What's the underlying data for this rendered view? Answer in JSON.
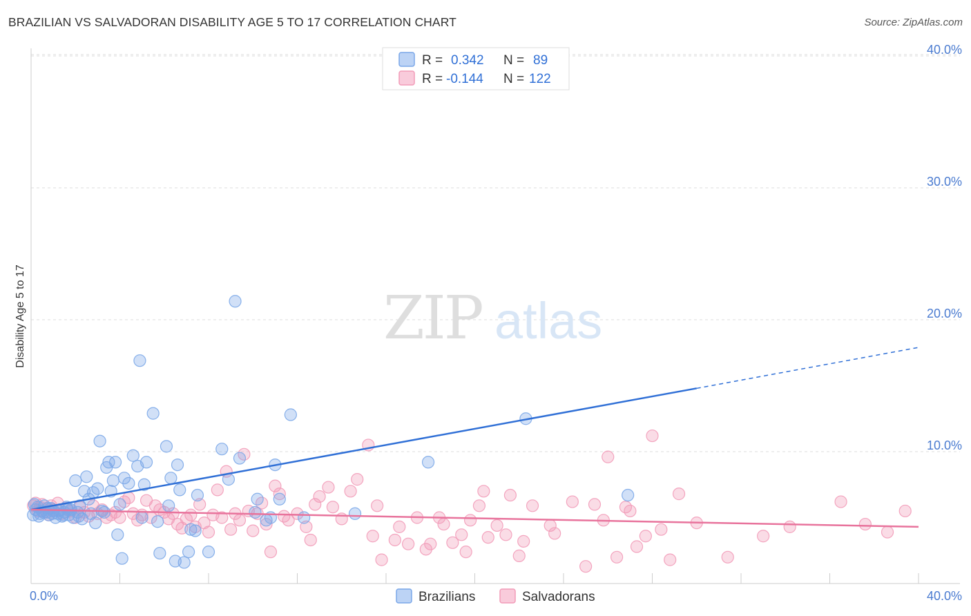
{
  "header": {
    "title": "BRAZILIAN VS SALVADORAN DISABILITY AGE 5 TO 17 CORRELATION CHART",
    "source": "Source: ZipAtlas.com"
  },
  "watermark": {
    "zip": "ZIP",
    "atlas": "atlas"
  },
  "legend": {
    "rows": [
      {
        "r_label": "R =",
        "r_value": "0.342",
        "n_label": "N =",
        "n_value": "89"
      },
      {
        "r_label": "R =",
        "r_value": "-0.144",
        "n_label": "N =",
        "n_value": "122"
      }
    ]
  },
  "bottom_legend": {
    "brazilians": "Brazilians",
    "salvadorans": "Salvadorans"
  },
  "chart_data": {
    "type": "scatter",
    "title": "BRAZILIAN VS SALVADORAN DISABILITY AGE 5 TO 17 CORRELATION CHART",
    "xlabel": "",
    "ylabel": "Disability Age 5 to 17",
    "xlim": [
      0,
      40
    ],
    "ylim": [
      0,
      41
    ],
    "x_tick_labels": [
      "0.0%",
      "40.0%"
    ],
    "y_ticks": [
      10,
      20,
      30,
      40
    ],
    "y_tick_labels": [
      "10.0%",
      "20.0%",
      "30.0%",
      "40.0%"
    ],
    "colors": {
      "brazilians": "#7aa7e8",
      "salvadorans": "#f29bb8",
      "blue_line": "#2f6fd6",
      "pink_line": "#e8739c"
    },
    "series": [
      {
        "name": "Brazilians",
        "r": 0.342,
        "n": 89,
        "trend": {
          "x0": 0,
          "y0": 5.6,
          "x1": 30.0,
          "y1": 14.8,
          "dash_to_x": 40,
          "dash_to_y": 17.9
        },
        "points": [
          [
            0.1,
            5.2
          ],
          [
            0.2,
            5.6
          ],
          [
            0.3,
            5.8
          ],
          [
            0.4,
            5.3
          ],
          [
            0.5,
            5.5
          ],
          [
            0.6,
            5.9
          ],
          [
            0.7,
            5.4
          ],
          [
            0.8,
            5.2
          ],
          [
            0.9,
            5.7
          ],
          [
            1.0,
            5.5
          ],
          [
            1.1,
            5.0
          ],
          [
            1.2,
            5.3
          ],
          [
            1.3,
            5.6
          ],
          [
            1.4,
            5.1
          ],
          [
            1.5,
            5.4
          ],
          [
            1.6,
            5.8
          ],
          [
            1.7,
            5.2
          ],
          [
            1.8,
            5.6
          ],
          [
            1.9,
            5.0
          ],
          [
            2.0,
            7.8
          ],
          [
            2.1,
            5.4
          ],
          [
            2.2,
            5.9
          ],
          [
            2.3,
            4.9
          ],
          [
            2.4,
            7.0
          ],
          [
            2.5,
            8.1
          ],
          [
            2.6,
            6.4
          ],
          [
            2.7,
            5.3
          ],
          [
            2.8,
            6.9
          ],
          [
            2.9,
            4.6
          ],
          [
            3.0,
            7.2
          ],
          [
            3.1,
            10.8
          ],
          [
            3.2,
            5.5
          ],
          [
            3.4,
            8.8
          ],
          [
            3.5,
            9.2
          ],
          [
            3.6,
            7.0
          ],
          [
            3.7,
            7.8
          ],
          [
            3.8,
            9.2
          ],
          [
            3.9,
            3.7
          ],
          [
            4.0,
            6.0
          ],
          [
            4.1,
            1.9
          ],
          [
            4.2,
            8.0
          ],
          [
            4.4,
            7.6
          ],
          [
            4.6,
            9.7
          ],
          [
            4.8,
            8.9
          ],
          [
            4.9,
            16.9
          ],
          [
            5.0,
            5.0
          ],
          [
            5.1,
            7.5
          ],
          [
            5.2,
            9.2
          ],
          [
            5.5,
            12.9
          ],
          [
            5.7,
            4.7
          ],
          [
            5.8,
            2.3
          ],
          [
            6.1,
            10.4
          ],
          [
            6.2,
            5.9
          ],
          [
            6.3,
            8.0
          ],
          [
            6.5,
            1.7
          ],
          [
            6.6,
            9.0
          ],
          [
            6.7,
            7.1
          ],
          [
            6.9,
            1.6
          ],
          [
            7.1,
            2.4
          ],
          [
            7.2,
            4.1
          ],
          [
            7.4,
            4.0
          ],
          [
            7.5,
            6.7
          ],
          [
            8.0,
            2.4
          ],
          [
            8.6,
            10.2
          ],
          [
            8.9,
            7.9
          ],
          [
            9.2,
            21.4
          ],
          [
            9.4,
            9.5
          ],
          [
            10.1,
            5.4
          ],
          [
            10.2,
            6.4
          ],
          [
            10.6,
            4.8
          ],
          [
            10.8,
            5.0
          ],
          [
            11.0,
            9.0
          ],
          [
            11.2,
            6.4
          ],
          [
            11.7,
            12.8
          ],
          [
            12.3,
            5.0
          ],
          [
            14.6,
            5.3
          ],
          [
            17.9,
            9.2
          ],
          [
            22.3,
            12.5
          ],
          [
            26.9,
            6.7
          ],
          [
            0.15,
            6.0
          ],
          [
            0.35,
            5.1
          ],
          [
            0.55,
            5.4
          ],
          [
            0.75,
            5.7
          ],
          [
            0.95,
            5.3
          ],
          [
            1.25,
            5.5
          ],
          [
            1.45,
            5.2
          ],
          [
            1.65,
            5.6
          ],
          [
            2.15,
            5.1
          ],
          [
            3.3,
            5.4
          ]
        ]
      },
      {
        "name": "Salvadorans",
        "r": -0.144,
        "n": 122,
        "trend": {
          "x0": 0,
          "y0": 5.6,
          "x1": 40,
          "y1": 4.3
        },
        "points": [
          [
            0.1,
            5.9
          ],
          [
            0.2,
            6.1
          ],
          [
            0.3,
            5.5
          ],
          [
            0.4,
            5.8
          ],
          [
            0.5,
            6.0
          ],
          [
            0.6,
            5.4
          ],
          [
            0.7,
            5.7
          ],
          [
            0.8,
            5.2
          ],
          [
            0.9,
            5.9
          ],
          [
            1.0,
            5.6
          ],
          [
            1.2,
            6.1
          ],
          [
            1.4,
            5.3
          ],
          [
            1.6,
            5.7
          ],
          [
            1.8,
            5.5
          ],
          [
            2.0,
            5.0
          ],
          [
            2.2,
            5.8
          ],
          [
            2.4,
            5.4
          ],
          [
            2.6,
            5.1
          ],
          [
            2.8,
            5.9
          ],
          [
            3.0,
            5.3
          ],
          [
            3.2,
            5.6
          ],
          [
            3.4,
            5.0
          ],
          [
            3.6,
            5.2
          ],
          [
            3.8,
            5.4
          ],
          [
            4.0,
            5.0
          ],
          [
            4.2,
            6.2
          ],
          [
            4.4,
            6.5
          ],
          [
            4.6,
            5.3
          ],
          [
            4.8,
            4.8
          ],
          [
            5.0,
            5.2
          ],
          [
            5.2,
            6.3
          ],
          [
            5.4,
            5.0
          ],
          [
            5.6,
            5.9
          ],
          [
            5.8,
            5.6
          ],
          [
            6.0,
            5.4
          ],
          [
            6.2,
            4.9
          ],
          [
            6.4,
            5.3
          ],
          [
            6.6,
            4.5
          ],
          [
            6.8,
            4.2
          ],
          [
            7.0,
            4.9
          ],
          [
            7.2,
            5.2
          ],
          [
            7.4,
            4.3
          ],
          [
            7.6,
            6.0
          ],
          [
            7.8,
            4.6
          ],
          [
            8.0,
            3.9
          ],
          [
            8.2,
            5.2
          ],
          [
            8.4,
            7.1
          ],
          [
            8.6,
            5.0
          ],
          [
            8.8,
            8.5
          ],
          [
            9.0,
            4.1
          ],
          [
            9.2,
            5.3
          ],
          [
            9.4,
            4.8
          ],
          [
            9.6,
            9.8
          ],
          [
            9.8,
            5.5
          ],
          [
            10.0,
            4.0
          ],
          [
            10.2,
            5.3
          ],
          [
            10.4,
            6.1
          ],
          [
            10.6,
            4.5
          ],
          [
            10.8,
            2.4
          ],
          [
            11.0,
            7.4
          ],
          [
            11.2,
            6.8
          ],
          [
            11.4,
            5.1
          ],
          [
            11.6,
            4.8
          ],
          [
            12.0,
            5.3
          ],
          [
            12.4,
            4.3
          ],
          [
            12.6,
            3.3
          ],
          [
            12.8,
            6.0
          ],
          [
            13.0,
            6.6
          ],
          [
            13.4,
            7.3
          ],
          [
            13.6,
            5.8
          ],
          [
            14.0,
            4.9
          ],
          [
            14.4,
            7.0
          ],
          [
            14.7,
            7.9
          ],
          [
            15.2,
            10.5
          ],
          [
            15.4,
            3.6
          ],
          [
            15.6,
            5.9
          ],
          [
            15.8,
            1.8
          ],
          [
            16.4,
            3.3
          ],
          [
            16.6,
            4.3
          ],
          [
            17.0,
            3.0
          ],
          [
            17.4,
            5.0
          ],
          [
            17.8,
            2.6
          ],
          [
            18.0,
            3.0
          ],
          [
            18.4,
            5.0
          ],
          [
            18.6,
            4.5
          ],
          [
            19.0,
            3.1
          ],
          [
            19.4,
            3.7
          ],
          [
            19.6,
            2.4
          ],
          [
            19.8,
            4.8
          ],
          [
            20.2,
            5.9
          ],
          [
            20.4,
            7.0
          ],
          [
            20.6,
            3.5
          ],
          [
            21.0,
            4.4
          ],
          [
            21.4,
            3.7
          ],
          [
            21.6,
            6.7
          ],
          [
            22.0,
            2.1
          ],
          [
            22.2,
            3.2
          ],
          [
            22.6,
            5.9
          ],
          [
            23.4,
            4.4
          ],
          [
            23.6,
            3.8
          ],
          [
            24.4,
            6.2
          ],
          [
            25.0,
            1.3
          ],
          [
            25.4,
            6.0
          ],
          [
            25.8,
            4.8
          ],
          [
            26.0,
            9.6
          ],
          [
            26.4,
            2.0
          ],
          [
            26.8,
            5.8
          ],
          [
            27.0,
            5.5
          ],
          [
            27.3,
            2.8
          ],
          [
            28.0,
            11.2
          ],
          [
            28.4,
            4.1
          ],
          [
            28.8,
            1.8
          ],
          [
            30.0,
            4.6
          ],
          [
            31.4,
            2.0
          ],
          [
            33.0,
            3.6
          ],
          [
            34.2,
            4.3
          ],
          [
            36.5,
            6.2
          ],
          [
            37.6,
            4.5
          ],
          [
            38.6,
            3.9
          ],
          [
            39.4,
            5.5
          ],
          [
            27.7,
            3.6
          ],
          [
            29.2,
            6.8
          ]
        ]
      }
    ]
  }
}
